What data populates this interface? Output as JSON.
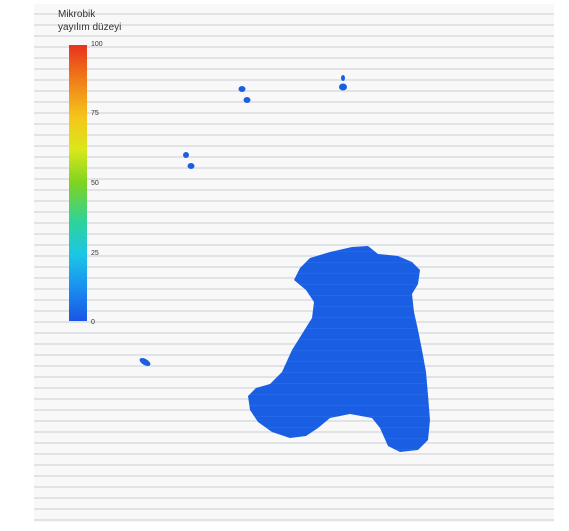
{
  "legend": {
    "title_line1": "Mikrobik",
    "title_line2": "yayılım düzeyi",
    "ticks": [
      "100",
      "75",
      "50",
      "25",
      "0"
    ],
    "colors": [
      "#e8321e",
      "#f07a18",
      "#f5c51b",
      "#7ed321",
      "#1cc6e6",
      "#1a55e6"
    ]
  },
  "spot_color": "#1a5fe3"
}
